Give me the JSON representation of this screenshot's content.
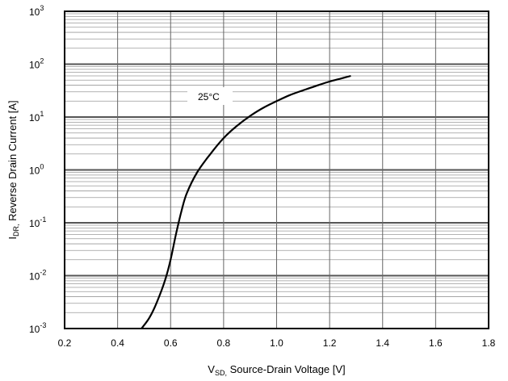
{
  "chart_data": {
    "type": "line",
    "xlabel": {
      "main": "V",
      "sub": "SD,",
      "rest": " Source-Drain Voltage [V]"
    },
    "ylabel": {
      "main": "I",
      "sub": "DR,",
      "rest": " Reverse Drain Current [A]"
    },
    "xlim": [
      0.2,
      1.8
    ],
    "ylim": [
      0.001,
      1000
    ],
    "yscale": "log",
    "grid": true,
    "x_ticks": [
      "0.2",
      "0.4",
      "0.6",
      "0.8",
      "1.0",
      "1.2",
      "1.4",
      "1.6",
      "1.8"
    ],
    "y_ticks": [
      {
        "base": "10",
        "exp": "-3"
      },
      {
        "base": "10",
        "exp": "-2"
      },
      {
        "base": "10",
        "exp": "-1"
      },
      {
        "base": "10",
        "exp": "0"
      },
      {
        "base": "10",
        "exp": "1"
      },
      {
        "base": "10",
        "exp": "2"
      },
      {
        "base": "10",
        "exp": "3"
      }
    ],
    "annotation": "25°C",
    "series": [
      {
        "color": "#000000",
        "x": [
          0.49,
          0.52,
          0.55,
          0.58,
          0.6,
          0.62,
          0.64,
          0.66,
          0.7,
          0.75,
          0.8,
          0.85,
          0.9,
          0.95,
          1.0,
          1.05,
          1.1,
          1.15,
          1.2,
          1.24,
          1.28
        ],
        "y": [
          0.001,
          0.0016,
          0.0033,
          0.0085,
          0.02,
          0.06,
          0.16,
          0.35,
          0.9,
          2.0,
          4.0,
          6.8,
          10.5,
          15,
          20,
          26,
          32,
          39,
          47,
          53,
          60
        ]
      }
    ]
  }
}
